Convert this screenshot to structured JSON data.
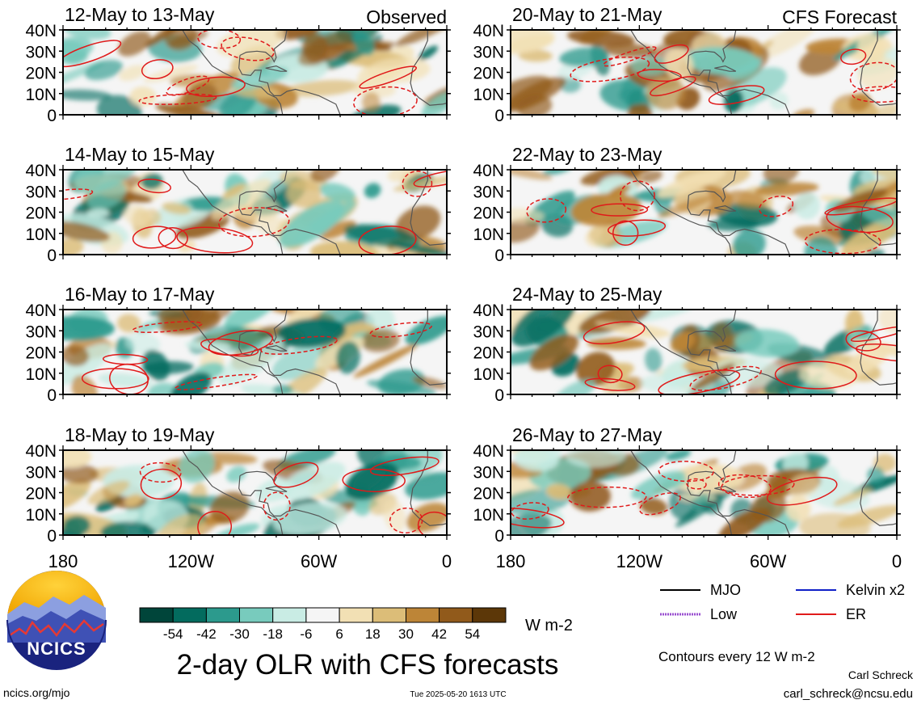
{
  "chart_data": {
    "type": "heatmap",
    "title": "2-day OLR with CFS forecasts",
    "units": "W m-2",
    "x_ticks": [
      "180",
      "120W",
      "60W",
      "0"
    ],
    "y_ticks": [
      "40N",
      "30N",
      "20N",
      "10N",
      "0"
    ],
    "xlim": [
      -180,
      0
    ],
    "ylim": [
      0,
      40
    ],
    "colorbar": {
      "labels": [
        "-54",
        "-42",
        "-30",
        "-18",
        "-6",
        "6",
        "18",
        "30",
        "42",
        "54"
      ],
      "colors": [
        "#00453a",
        "#036b5e",
        "#2c9a8d",
        "#78cbbd",
        "#c9ece4",
        "#f5f5f5",
        "#f2e0b4",
        "#dcbd78",
        "#bd8537",
        "#915a1b",
        "#5c3708"
      ]
    },
    "panels": [
      {
        "period": "12-May to 13-May",
        "tag": "Observed"
      },
      {
        "period": "14-May to 15-May",
        "tag": ""
      },
      {
        "period": "16-May to 17-May",
        "tag": ""
      },
      {
        "period": "18-May to 19-May",
        "tag": ""
      },
      {
        "period": "20-May to 21-May",
        "tag": "CFS Forecast"
      },
      {
        "period": "22-May to 23-May",
        "tag": ""
      },
      {
        "period": "24-May to 25-May",
        "tag": ""
      },
      {
        "period": "26-May to 27-May",
        "tag": ""
      }
    ],
    "legend": [
      {
        "label": "MJO",
        "color": "#000000"
      },
      {
        "label": "Kelvin x2",
        "color": "#1020c8"
      },
      {
        "label": "Low",
        "color": "#9a4fd0"
      },
      {
        "label": "ER",
        "color": "#e01a1a"
      }
    ]
  },
  "contour_note": "Contours every 12 W m-2",
  "logo_text": "NCICS",
  "website": "ncics.org/mjo",
  "timestamp": "Tue 2025-05-20 1613 UTC",
  "author": "Carl Schreck",
  "email": "carl_schreck@ncsu.edu"
}
